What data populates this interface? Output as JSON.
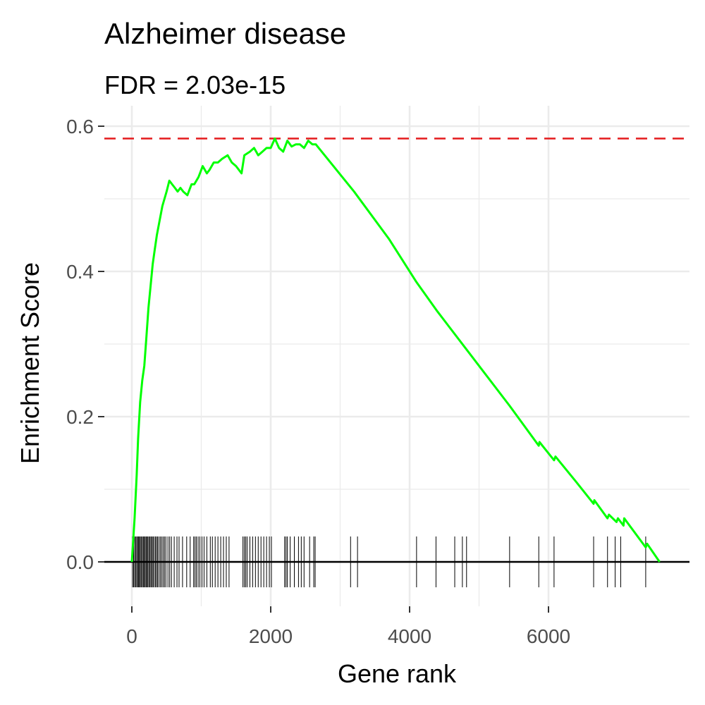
{
  "chart_data": {
    "type": "line",
    "title": "Alzheimer disease",
    "subtitle": "FDR = 2.03e-15",
    "xlabel": "Gene rank",
    "ylabel": "Enrichment Score",
    "xlim": [
      -500,
      8000
    ],
    "ylim": [
      -0.07,
      0.62
    ],
    "x_ticks": [
      0,
      2000,
      4000,
      6000
    ],
    "x_tick_labels": [
      "0",
      "2000",
      "4000",
      "6000"
    ],
    "y_ticks": [
      0.0,
      0.2,
      0.4,
      0.6
    ],
    "y_tick_labels": [
      "0.0",
      "0.2",
      "0.4",
      "0.6"
    ],
    "grid": true,
    "colors": {
      "line": "#00ff00",
      "max_line": "#e41a1c",
      "zero_line": "#000000",
      "rug": "#000000",
      "grid": "#ebebeb"
    },
    "max_es": 0.583,
    "series": [
      {
        "x": [
          0,
          40,
          70,
          90,
          120,
          150,
          180,
          210,
          240,
          270,
          300,
          330,
          360,
          400,
          440,
          470,
          500,
          540,
          580,
          620,
          660,
          700,
          740,
          800,
          860,
          900,
          960,
          1020,
          1080,
          1120,
          1180,
          1240,
          1300,
          1380,
          1440,
          1500,
          1580,
          1620,
          1700,
          1760,
          1820,
          1880,
          1940,
          2000,
          2060,
          2120,
          2180,
          2240,
          2300,
          2360,
          2420,
          2480,
          2540,
          2600,
          2650,
          3200,
          3700,
          4100,
          4400,
          4800,
          5000,
          5440,
          5860,
          5870,
          6080,
          6100,
          6400,
          6650,
          6660,
          6850,
          6870,
          6980,
          7000,
          7080,
          7090,
          7400,
          7420,
          7600
        ],
        "y": [
          0.0,
          0.06,
          0.12,
          0.17,
          0.22,
          0.25,
          0.27,
          0.31,
          0.35,
          0.38,
          0.41,
          0.43,
          0.45,
          0.47,
          0.49,
          0.5,
          0.51,
          0.525,
          0.52,
          0.515,
          0.51,
          0.515,
          0.51,
          0.505,
          0.52,
          0.52,
          0.53,
          0.545,
          0.535,
          0.54,
          0.55,
          0.55,
          0.555,
          0.56,
          0.55,
          0.545,
          0.535,
          0.56,
          0.565,
          0.57,
          0.56,
          0.565,
          0.57,
          0.57,
          0.583,
          0.57,
          0.565,
          0.58,
          0.572,
          0.575,
          0.575,
          0.57,
          0.58,
          0.575,
          0.575,
          0.51,
          0.445,
          0.385,
          0.345,
          0.295,
          0.27,
          0.215,
          0.16,
          0.165,
          0.14,
          0.145,
          0.11,
          0.08,
          0.085,
          0.06,
          0.065,
          0.055,
          0.06,
          0.05,
          0.06,
          0.02,
          0.025,
          0.0
        ]
      }
    ],
    "hits": [
      10,
      25,
      40,
      55,
      70,
      85,
      95,
      110,
      120,
      135,
      150,
      165,
      175,
      190,
      205,
      215,
      230,
      245,
      260,
      275,
      290,
      305,
      320,
      340,
      355,
      370,
      390,
      410,
      430,
      450,
      470,
      490,
      520,
      545,
      570,
      610,
      650,
      680,
      730,
      790,
      840,
      890,
      910,
      930,
      955,
      980,
      1010,
      1040,
      1080,
      1130,
      1160,
      1200,
      1240,
      1280,
      1320,
      1360,
      1400,
      1600,
      1620,
      1640,
      1660,
      1700,
      1740,
      1780,
      1820,
      1860,
      1900,
      1940,
      1980,
      2010,
      2200,
      2220,
      2240,
      2280,
      2340,
      2400,
      2440,
      2480,
      2560,
      2620,
      2640,
      3150,
      3250,
      4100,
      4380,
      4650,
      4760,
      4820,
      5440,
      5860,
      6080,
      6650,
      6850,
      6960,
      7040,
      7400
    ]
  }
}
